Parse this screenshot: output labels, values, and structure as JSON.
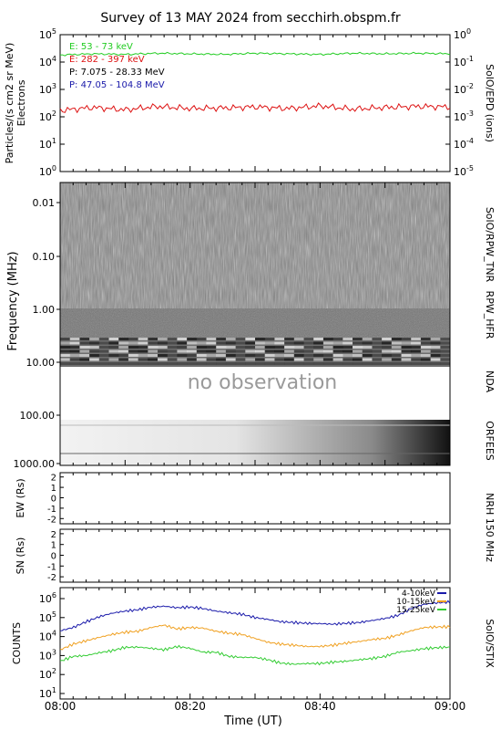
{
  "title": "Survey of 13 MAY 2024 from secchirh.obspm.fr",
  "x_axis": {
    "label": "Time (UT)",
    "ticks": [
      "08:00",
      "08:20",
      "08:40",
      "09:00"
    ],
    "range_minutes": [
      0,
      60
    ]
  },
  "colors": {
    "green": "#22cc22",
    "red": "#dd1111",
    "black": "#000000",
    "blue": "#1a1aaa",
    "orange": "#f0a020",
    "stix_green": "#33cc33"
  },
  "panels": {
    "epd": {
      "ylabel": "Particles/(s cm2 sr MeV)",
      "ylabel_sub": "Electrons",
      "right_label": "SolO/EPD (ions)",
      "left_ticks": [
        {
          "base": "10",
          "exp": "5"
        },
        {
          "base": "10",
          "exp": "4"
        },
        {
          "base": "10",
          "exp": "3"
        },
        {
          "base": "10",
          "exp": "2"
        },
        {
          "base": "10",
          "exp": "1"
        },
        {
          "base": "10",
          "exp": "0"
        }
      ],
      "right_ticks": [
        {
          "base": "10",
          "exp": "0"
        },
        {
          "base": "10",
          "exp": "-1"
        },
        {
          "base": "10",
          "exp": "-2"
        },
        {
          "base": "10",
          "exp": "-3"
        },
        {
          "base": "10",
          "exp": "-4"
        },
        {
          "base": "10",
          "exp": "-5"
        }
      ],
      "legend": [
        {
          "text": "E: 53 - 73 keV",
          "color": "#22cc22"
        },
        {
          "text": "E: 282 - 397 keV",
          "color": "#dd1111"
        },
        {
          "text": "P: 7.075 - 28.33 MeV",
          "color": "#000000"
        },
        {
          "text": "P: 47.05 - 104.8 MeV",
          "color": "#1a1aaa"
        }
      ]
    },
    "spectra": {
      "ylabel": "Frequency (MHz)",
      "ticks": [
        "0.01",
        "0.10",
        "1.00",
        "10.00",
        "100.00",
        "1000.00"
      ],
      "labels": [
        "SolO/RPW_TNR",
        "RPW_HFR",
        "NDA",
        "ORFEES"
      ],
      "no_obs": "no observation"
    },
    "nrh": {
      "right_label": "NRH 150 MHz",
      "ew_label": "EW (Rs)",
      "sn_label": "SN (Rs)",
      "ticks": [
        "2",
        "1",
        "0",
        "-1",
        "-2"
      ]
    },
    "stix": {
      "ylabel": "COUNTS",
      "right_label": "SolO/STIX",
      "ticks": [
        {
          "base": "10",
          "exp": "6"
        },
        {
          "base": "10",
          "exp": "5"
        },
        {
          "base": "10",
          "exp": "4"
        },
        {
          "base": "10",
          "exp": "3"
        },
        {
          "base": "10",
          "exp": "2"
        },
        {
          "base": "10",
          "exp": "1"
        }
      ],
      "legend": [
        "4-10keV",
        "10-15keV",
        "15-25keV"
      ]
    }
  },
  "chart_data": [
    {
      "type": "line",
      "panel": "SolO/EPD",
      "ylog": true,
      "ylim": [
        1,
        100000
      ],
      "xlim_minutes": [
        0,
        60
      ],
      "series": [
        {
          "name": "E: 53 - 73 keV",
          "color": "#22cc22",
          "x": [
            0,
            5,
            10,
            15,
            20,
            25,
            30,
            35,
            40,
            45,
            50,
            55,
            60
          ],
          "y": [
            18000,
            20000,
            19000,
            21000,
            20000,
            19000,
            21000,
            20000,
            19000,
            21000,
            20000,
            21000,
            20000
          ]
        },
        {
          "name": "E: 282 - 397 keV",
          "color": "#dd1111",
          "x": [
            0,
            5,
            10,
            15,
            20,
            25,
            30,
            35,
            40,
            45,
            50,
            55,
            60
          ],
          "y": [
            170,
            220,
            180,
            240,
            200,
            210,
            230,
            200,
            250,
            190,
            220,
            240,
            230
          ]
        }
      ]
    },
    {
      "type": "line",
      "panel": "SolO/STIX",
      "ylog": true,
      "ylim": [
        10,
        1000000
      ],
      "xlim_minutes": [
        0,
        60
      ],
      "series": [
        {
          "name": "4-10keV",
          "color": "#1a1aaa",
          "x": [
            0,
            2,
            4,
            6,
            8,
            10,
            12,
            14,
            16,
            18,
            20,
            22,
            24,
            26,
            28,
            30,
            32,
            34,
            36,
            38,
            40,
            42,
            44,
            46,
            48,
            50,
            52,
            54,
            56,
            58,
            60
          ],
          "y": [
            20000,
            30000,
            60000,
            110000,
            170000,
            220000,
            260000,
            350000,
            400000,
            330000,
            360000,
            300000,
            220000,
            180000,
            150000,
            100000,
            80000,
            60000,
            55000,
            50000,
            48000,
            45000,
            50000,
            55000,
            70000,
            90000,
            130000,
            300000,
            500000,
            600000,
            650000
          ]
        },
        {
          "name": "10-15keV",
          "color": "#f0a020",
          "x": [
            0,
            2,
            4,
            6,
            8,
            10,
            12,
            14,
            16,
            18,
            20,
            22,
            24,
            26,
            28,
            30,
            32,
            34,
            36,
            38,
            40,
            42,
            44,
            46,
            48,
            50,
            52,
            54,
            56,
            58,
            60
          ],
          "y": [
            2000,
            4000,
            6000,
            9000,
            13000,
            17000,
            19000,
            30000,
            40000,
            25000,
            30000,
            28000,
            19000,
            15000,
            13000,
            8000,
            5000,
            4000,
            3500,
            3000,
            3000,
            3500,
            4500,
            5500,
            7000,
            8000,
            12000,
            20000,
            30000,
            32000,
            33000
          ]
        },
        {
          "name": "15-25keV",
          "color": "#33cc33",
          "x": [
            0,
            2,
            4,
            6,
            8,
            10,
            12,
            14,
            16,
            18,
            20,
            22,
            24,
            26,
            28,
            30,
            32,
            34,
            36,
            38,
            40,
            42,
            44,
            46,
            48,
            50,
            52,
            54,
            56,
            58,
            60
          ],
          "y": [
            500,
            900,
            1000,
            1400,
            1800,
            2700,
            2800,
            2400,
            2000,
            3000,
            2400,
            1500,
            1500,
            900,
            800,
            800,
            600,
            400,
            350,
            380,
            380,
            450,
            500,
            600,
            700,
            900,
            1500,
            1800,
            2300,
            2600,
            2800
          ]
        }
      ]
    }
  ]
}
